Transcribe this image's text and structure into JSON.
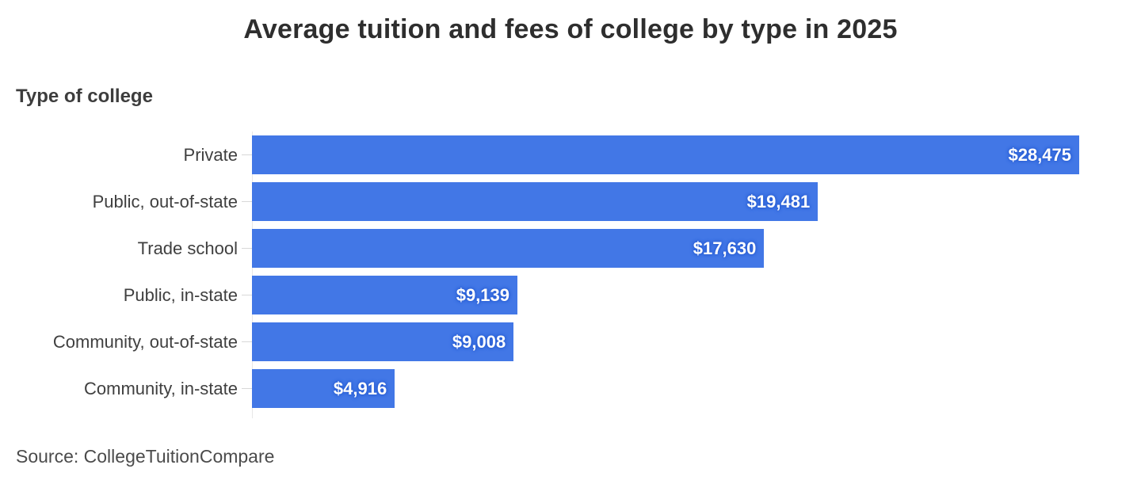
{
  "title": "Average tuition and fees of college by type in 2025",
  "axis_title": "Type of college",
  "source": "Source: CollegeTuitionCompare",
  "colors": {
    "bar": "#4277e6",
    "value_glow": "#2a5fd4",
    "title_text": "#2e2e2e",
    "label_text": "#3f3f3f",
    "background": "#ffffff"
  },
  "chart_data": {
    "type": "bar",
    "orientation": "horizontal",
    "title": "Average tuition and fees of college by type in 2025",
    "xlabel": "",
    "ylabel": "Type of college",
    "categories": [
      "Private",
      "Public, out-of-state",
      "Trade school",
      "Public, in-state",
      "Community, out-of-state",
      "Community, in-state"
    ],
    "values": [
      28475,
      19481,
      17630,
      9139,
      9008,
      4916
    ],
    "value_labels": [
      "$28,475",
      "$19,481",
      "$17,630",
      "$9,139",
      "$9,008",
      "$4,916"
    ],
    "xlim": [
      0,
      28475
    ],
    "grid": false,
    "legend": "none",
    "value_label_position": "inside-end"
  }
}
